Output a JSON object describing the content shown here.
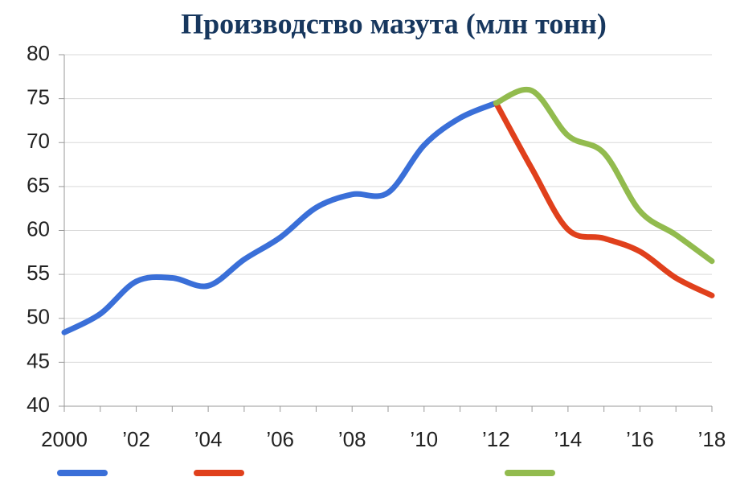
{
  "chart_data": {
    "type": "line",
    "title": "Производство мазута (млн тонн)",
    "series": [
      {
        "color": "#3a6fd8",
        "x": [
          2000,
          2001,
          2002,
          2003,
          2004,
          2005,
          2006,
          2007,
          2008,
          2009,
          2010,
          2011,
          2012
        ],
        "values": [
          48.4,
          50.5,
          54.2,
          54.6,
          53.7,
          56.7,
          59.2,
          62.6,
          64.1,
          64.3,
          69.7,
          72.8,
          74.5
        ]
      },
      {
        "color": "#e0401c",
        "x": [
          2012,
          2013,
          2014,
          2015,
          2016,
          2017,
          2018
        ],
        "values": [
          74.5,
          67,
          60.1,
          59.1,
          57.6,
          54.6,
          52.6
        ]
      },
      {
        "color": "#92bb4e",
        "x": [
          2012,
          2013,
          2014,
          2015,
          2016,
          2017,
          2018
        ],
        "values": [
          74.5,
          75.9,
          70.8,
          68.8,
          62.2,
          59.5,
          56.5
        ]
      }
    ],
    "xlim": [
      2000,
      2018
    ],
    "xticks": [
      2000,
      {
        "value": 2002,
        "label": "’02"
      },
      {
        "value": 2004,
        "label": "’04"
      },
      {
        "value": 2006,
        "label": "’06"
      },
      {
        "value": 2008,
        "label": "’08"
      },
      {
        "value": 2010,
        "label": "’10"
      },
      {
        "value": 2012,
        "label": "’12"
      },
      {
        "value": 2014,
        "label": "’14"
      },
      {
        "value": 2016,
        "label": "’16"
      },
      {
        "value": 2018,
        "label": "’18"
      }
    ],
    "xminor_ticks": [
      2001,
      2003,
      2005,
      2007,
      2009,
      2011,
      2013,
      2015,
      2017
    ],
    "ylim": [
      40,
      80
    ],
    "yticks": [
      40,
      45,
      50,
      55,
      60,
      65,
      70,
      75,
      80
    ],
    "grid": true,
    "legend": "bottom"
  }
}
